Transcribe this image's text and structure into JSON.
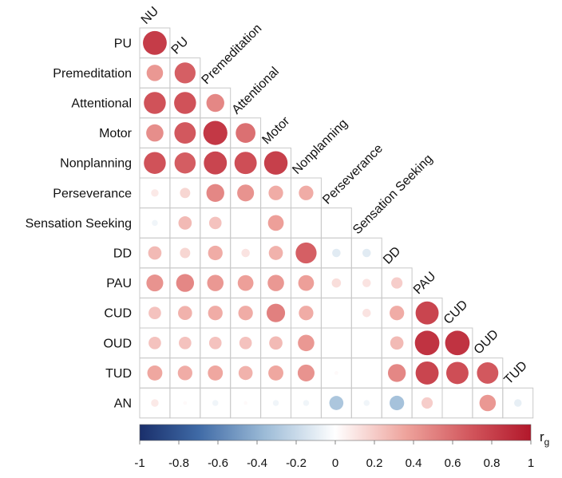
{
  "chart_data": {
    "type": "heatmap",
    "subtype": "lower-triangle correlation matrix with circle markers",
    "variables": [
      "NU",
      "PU",
      "Premeditation",
      "Attentional",
      "Motor",
      "Nonplanning",
      "Perseverance",
      "Sensation Seeking",
      "DD",
      "PAU",
      "CUD",
      "OUD",
      "TUD",
      "AN"
    ],
    "row_labels": [
      "PU",
      "Premeditation",
      "Attentional",
      "Motor",
      "Nonplanning",
      "Perseverance",
      "Sensation Seeking",
      "DD",
      "PAU",
      "CUD",
      "OUD",
      "TUD",
      "AN"
    ],
    "column_labels": [
      "NU",
      "PU",
      "Premeditation",
      "Attentional",
      "Motor",
      "Nonplanning",
      "Perseverance",
      "Sensation Seeking",
      "DD",
      "PAU",
      "CUD",
      "OUD",
      "TUD"
    ],
    "values": [
      [
        0.8
      ],
      [
        0.38,
        0.62
      ],
      [
        0.68,
        0.68,
        0.45
      ],
      [
        0.42,
        0.65,
        0.82,
        0.55
      ],
      [
        0.68,
        0.63,
        0.75,
        0.7,
        0.78
      ],
      [
        0.08,
        0.15,
        0.45,
        0.4,
        0.3,
        0.3
      ],
      [
        -0.05,
        0.25,
        0.22,
        null,
        0.35,
        null,
        null
      ],
      [
        0.25,
        0.15,
        0.3,
        0.1,
        0.28,
        0.62,
        -0.1,
        -0.1
      ],
      [
        0.4,
        0.45,
        0.38,
        0.35,
        0.38,
        0.35,
        0.12,
        0.1,
        0.18
      ],
      [
        0.22,
        0.28,
        0.3,
        0.3,
        0.48,
        0.3,
        null,
        0.1,
        0.3,
        0.75
      ],
      [
        0.22,
        0.22,
        0.22,
        0.22,
        0.25,
        0.38,
        null,
        null,
        0.25,
        0.85,
        0.85
      ],
      [
        0.32,
        0.3,
        0.32,
        0.28,
        0.32,
        0.4,
        0.02,
        null,
        0.45,
        0.75,
        0.7,
        0.65
      ],
      [
        0.08,
        0.02,
        -0.05,
        0.02,
        -0.05,
        -0.05,
        -0.28,
        -0.05,
        -0.3,
        0.18,
        null,
        0.38,
        -0.08
      ]
    ],
    "colorbar": {
      "ticks": [
        "-1",
        "-0.8",
        "-0.6",
        "-0.4",
        "-0.2",
        "0",
        "0.2",
        "0.4",
        "0.6",
        "0.8",
        "1"
      ],
      "range": [
        -1,
        1
      ],
      "low_color": "#1a2f6b",
      "mid_color": "#ffffff",
      "high_color": "#b2182b",
      "title": "r",
      "title_subscript": "g"
    },
    "grid": true
  }
}
